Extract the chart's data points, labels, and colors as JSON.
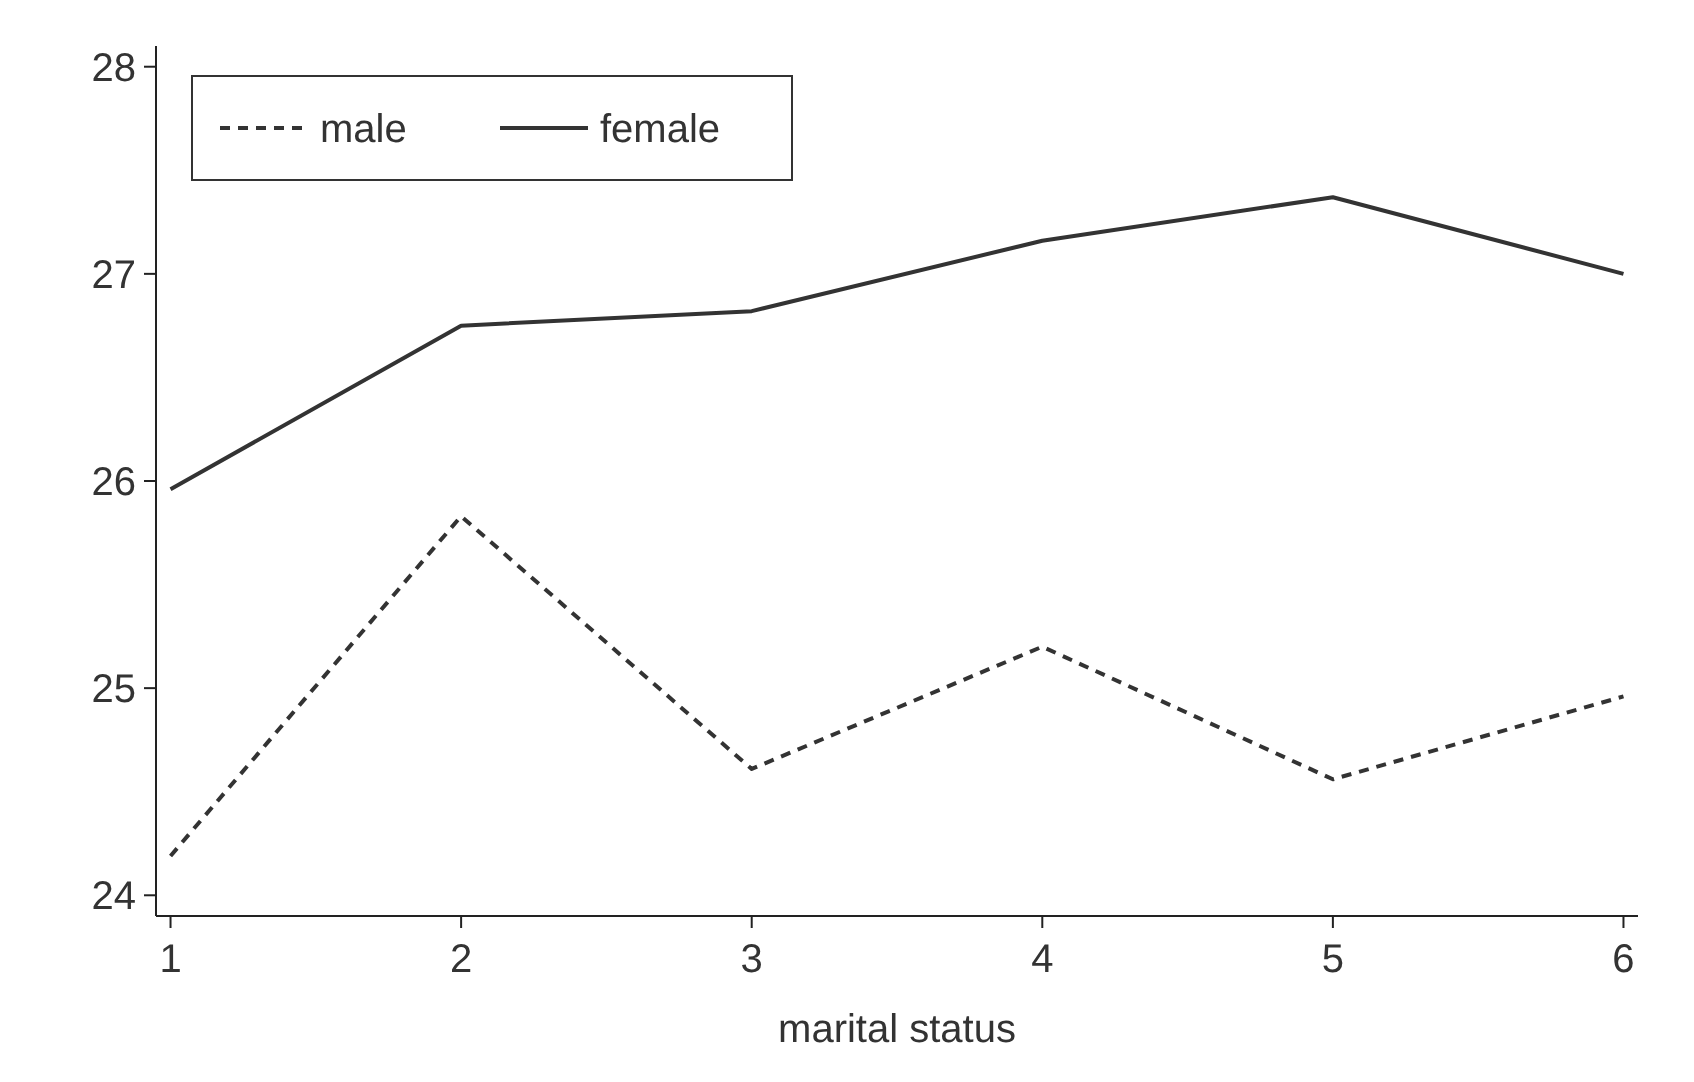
{
  "chart_data": {
    "type": "line",
    "xlabel": "marital status",
    "x": [
      1,
      2,
      3,
      4,
      5,
      6
    ],
    "xlim": [
      0.95,
      6.05
    ],
    "xticks": [
      1,
      2,
      3,
      4,
      5,
      6
    ],
    "ylim": [
      23.9,
      28.1
    ],
    "yticks": [
      24,
      25,
      26,
      27,
      28
    ],
    "grid": false,
    "legend": "top left",
    "series": [
      {
        "name": "male",
        "color": "#333333",
        "line_style": "dashed",
        "values": [
          24.19,
          25.83,
          24.61,
          25.2,
          24.56,
          24.96
        ]
      },
      {
        "name": "female",
        "color": "#333333",
        "line_style": "solid",
        "values": [
          25.96,
          26.75,
          26.82,
          27.16,
          27.37,
          27.0
        ]
      }
    ]
  }
}
